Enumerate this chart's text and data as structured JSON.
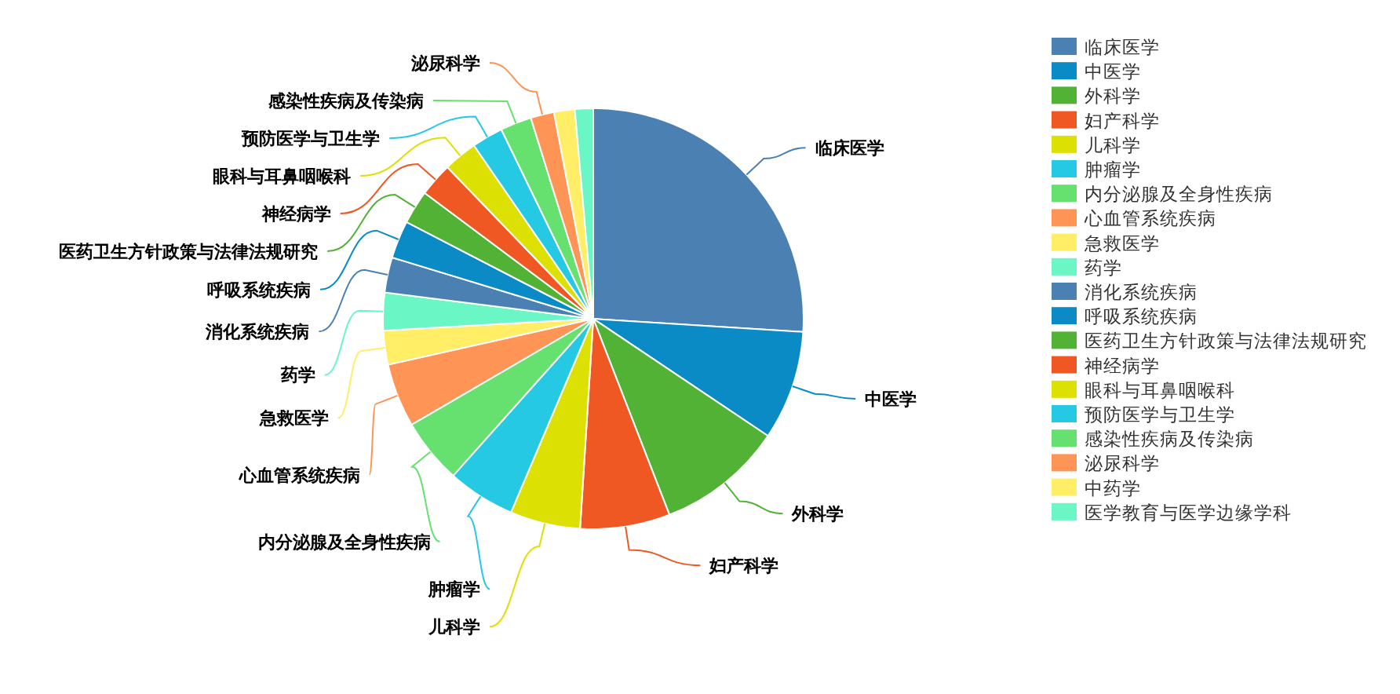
{
  "chart_data": {
    "type": "pie",
    "categories": [
      "临床医学",
      "中医学",
      "外科学",
      "妇产科学",
      "儿科学",
      "肿瘤学",
      "内分泌腺及全身性疾病",
      "心血管系统疾病",
      "急救医学",
      "药学",
      "消化系统疾病",
      "呼吸系统疾病",
      "医药卫生方针政策与法律法规研究",
      "神经病学",
      "眼科与耳鼻咽喉科",
      "预防医学与卫生学",
      "感染性疾病及传染病",
      "泌尿科学",
      "中药学",
      "医学教育与医学边缘学科"
    ],
    "values": [
      26.0,
      8.4,
      9.7,
      6.9,
      5.4,
      5.2,
      5.0,
      4.9,
      2.6,
      2.9,
      2.7,
      2.9,
      2.6,
      2.6,
      2.6,
      2.4,
      2.4,
      1.8,
      1.6,
      1.4
    ],
    "colors": [
      "#4a80b2",
      "#0a8bc6",
      "#52b235",
      "#ef5822",
      "#dde003",
      "#25c9e3",
      "#66e06f",
      "#ff9457",
      "#ffee66",
      "#6af6c5",
      "#4a80b2",
      "#0a8bc6",
      "#52b235",
      "#ef5822",
      "#dde003",
      "#25c9e3",
      "#66e06f",
      "#ff9457",
      "#ffee66",
      "#6af6c5"
    ],
    "legend": "right"
  }
}
